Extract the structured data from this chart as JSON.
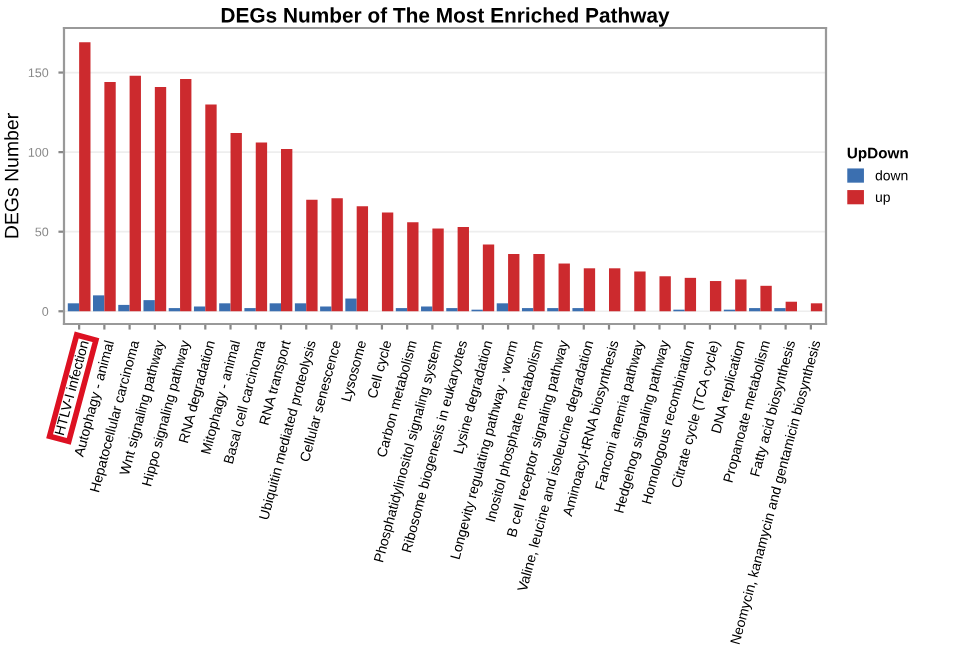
{
  "chart_data": {
    "type": "bar",
    "title": "DEGs Number of The Most Enriched Pathway",
    "ylabel": "DEGs Number",
    "legend_title": "UpDown",
    "categories": [
      "HTLV-I infection",
      "Autophagy - animal",
      "Hepatocellular carcinoma",
      "Wnt signaling pathway",
      "Hippo signaling pathway",
      "RNA degradation",
      "Mitophagy - animal",
      "Basal cell carcinoma",
      "RNA transport",
      "Ubiquitin mediated proteolysis",
      "Cellular senescence",
      "Lysosome",
      "Cell cycle",
      "Carbon metabolism",
      "Phosphatidylinositol signaling system",
      "Ribosome biogenesis in eukaryotes",
      "Lysine degradation",
      "Longevity regulating pathway - worm",
      "Inositol phosphate metabolism",
      "B cell receptor signaling pathway",
      "Valine, leucine and isoleucine degradation",
      "Aminoacyl-tRNA biosynthesis",
      "Fanconi anemia pathway",
      "Hedgehog signaling pathway",
      "Homologous recombination",
      "Citrate cycle (TCA cycle)",
      "DNA replication",
      "Propanoate metabolism",
      "Fatty acid biosynthesis",
      "Neomycin, kanamycin and gentamicin biosynthesis"
    ],
    "series": [
      {
        "name": "down",
        "color": "#3b6fb0",
        "values": [
          5,
          10,
          4,
          7,
          2,
          3,
          5,
          2,
          5,
          5,
          3,
          8,
          0,
          2,
          3,
          2,
          1,
          5,
          2,
          2,
          2,
          0,
          0,
          0,
          1,
          0,
          1,
          2,
          2,
          0
        ]
      },
      {
        "name": "up",
        "color": "#cc2a2e",
        "values": [
          169,
          144,
          148,
          141,
          146,
          130,
          112,
          106,
          102,
          70,
          71,
          66,
          62,
          56,
          52,
          53,
          42,
          36,
          36,
          30,
          27,
          27,
          25,
          22,
          21,
          19,
          20,
          16,
          6,
          5
        ]
      }
    ],
    "ylim": [
      -8,
      178
    ],
    "yticks": [
      0,
      50,
      100,
      150
    ],
    "grid": "y",
    "legend": "right"
  }
}
